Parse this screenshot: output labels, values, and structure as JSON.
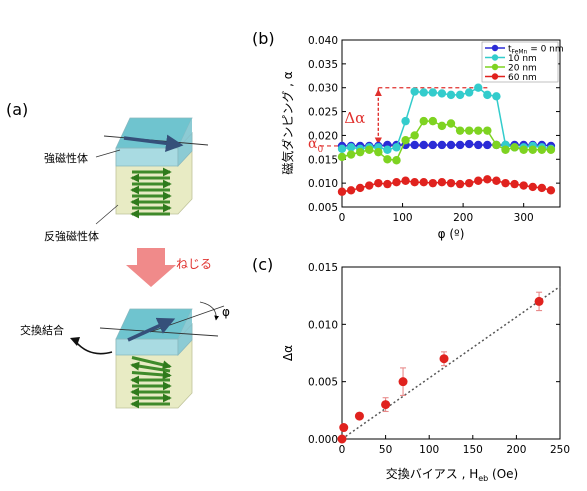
{
  "left": {
    "label_a": "(a)",
    "ferro_label": "強磁性体",
    "antiferro_label": "反強磁性体",
    "twist_label": "ねじる",
    "exchange_label": "交換結合",
    "phi_label": "φ",
    "colors": {
      "cube_top": "#6fc4cf",
      "cube_ferro": "#a9dbe2",
      "cube_anti": "#e8ebc4",
      "spin_arrow": "#3f8a2a",
      "twist_arrow": "#f08a8a",
      "twist_text": "#e0312e"
    }
  },
  "chart_b": {
    "panel_label": "(b)",
    "type": "line",
    "xlabel": "φ (º)",
    "ylabel": "磁気ダンピング , α",
    "xlim": [
      0,
      360
    ],
    "ylim": [
      0.005,
      0.04
    ],
    "xticks": [
      0,
      100,
      200,
      300
    ],
    "yticks": [
      0.005,
      0.01,
      0.015,
      0.02,
      0.025,
      0.03,
      0.035,
      0.04
    ],
    "ytick_labels": [
      "0.005",
      "0.010",
      "0.015",
      "0.020",
      "0.025",
      "0.030",
      "0.035",
      "0.040"
    ],
    "legend_position": "top-right",
    "delta_label": "Δα",
    "alpha0_label": "α",
    "alpha0_sub": "0",
    "annotation_color": "#e0312e",
    "x": [
      0,
      15,
      30,
      45,
      60,
      75,
      90,
      105,
      120,
      135,
      150,
      165,
      180,
      195,
      210,
      225,
      240,
      255,
      270,
      285,
      300,
      315,
      330,
      345
    ],
    "series": [
      {
        "name_main": "t",
        "name_sub": "FeMn",
        "name_rest": " = 0 nm",
        "color": "#2b2bd6",
        "values": [
          0.0178,
          0.0178,
          0.0178,
          0.0178,
          0.0178,
          0.018,
          0.018,
          0.018,
          0.018,
          0.018,
          0.018,
          0.018,
          0.018,
          0.018,
          0.0182,
          0.018,
          0.018,
          0.018,
          0.018,
          0.018,
          0.018,
          0.018,
          0.018,
          0.0178
        ]
      },
      {
        "name_main": "10 nm",
        "name_sub": "",
        "name_rest": "",
        "color": "#33cccc",
        "values": [
          0.0172,
          0.0175,
          0.0172,
          0.0175,
          0.0175,
          0.017,
          0.0175,
          0.023,
          0.0292,
          0.029,
          0.029,
          0.0288,
          0.0285,
          0.0285,
          0.029,
          0.03,
          0.0285,
          0.0282,
          0.018,
          0.0175,
          0.0175,
          0.0178,
          0.0175,
          0.0172
        ]
      },
      {
        "name_main": "20 nm",
        "name_sub": "",
        "name_rest": "",
        "color": "#7ed321",
        "values": [
          0.0155,
          0.016,
          0.0165,
          0.017,
          0.0165,
          0.015,
          0.0148,
          0.019,
          0.02,
          0.023,
          0.023,
          0.022,
          0.0225,
          0.021,
          0.021,
          0.021,
          0.021,
          0.018,
          0.017,
          0.0175,
          0.017,
          0.017,
          0.017,
          0.017
        ]
      },
      {
        "name_main": "60 nm",
        "name_sub": "",
        "name_rest": "",
        "color": "#e0221e",
        "values": [
          0.0082,
          0.0085,
          0.009,
          0.0095,
          0.01,
          0.0098,
          0.0102,
          0.0105,
          0.0102,
          0.0102,
          0.01,
          0.0102,
          0.01,
          0.0098,
          0.01,
          0.0105,
          0.0108,
          0.0105,
          0.01,
          0.0098,
          0.0095,
          0.0092,
          0.009,
          0.0085
        ]
      }
    ]
  },
  "chart_c": {
    "panel_label": "(c)",
    "type": "scatter",
    "xlabel_main": "交換バイアス , H",
    "xlabel_sub": "eb",
    "xlabel_unit": " (Oe)",
    "ylabel": "Δα",
    "xlim": [
      0,
      250
    ],
    "ylim": [
      0,
      0.015
    ],
    "xticks": [
      0,
      50,
      100,
      150,
      200,
      250
    ],
    "yticks": [
      0,
      0.005,
      0.01,
      0.015
    ],
    "ytick_labels": [
      "0.000",
      "0.005",
      "0.010",
      "0.015"
    ],
    "point_color": "#e0221e",
    "error_color": "#e88a8a",
    "points": [
      {
        "x": 0,
        "y": 0.0,
        "err": 0.0
      },
      {
        "x": 2,
        "y": 0.001,
        "err": 0.0
      },
      {
        "x": 20,
        "y": 0.002,
        "err": 0.0
      },
      {
        "x": 50,
        "y": 0.003,
        "err": 0.0006
      },
      {
        "x": 70,
        "y": 0.005,
        "err": 0.0012
      },
      {
        "x": 117,
        "y": 0.007,
        "err": 0.0006
      },
      {
        "x": 226,
        "y": 0.012,
        "err": 0.0008
      }
    ],
    "fit_line": {
      "x": [
        0,
        250
      ],
      "y": [
        0,
        0.0133
      ],
      "color": "#555555"
    }
  }
}
